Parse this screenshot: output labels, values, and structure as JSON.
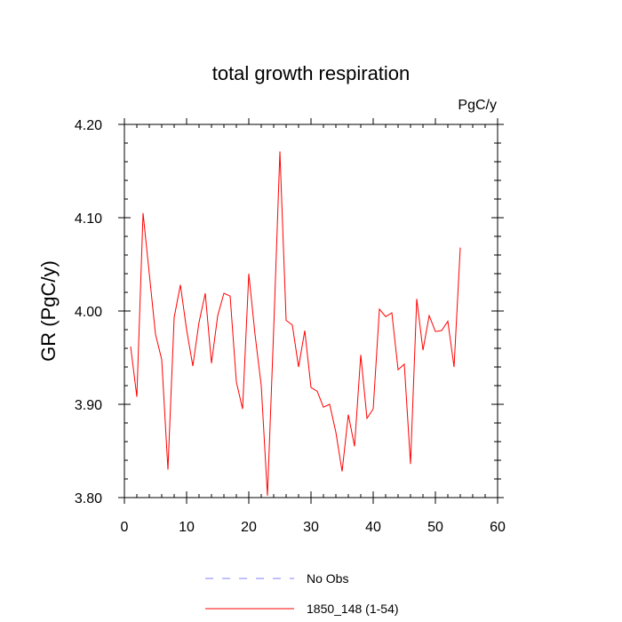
{
  "chart_data": {
    "type": "line",
    "title": "total growth respiration",
    "units_label": "PgC/y",
    "xlabel": "",
    "ylabel": "GR  (PgC/y)",
    "xlim": [
      0,
      60
    ],
    "ylim": [
      3.8,
      4.2
    ],
    "x_ticks": [
      0,
      10,
      20,
      30,
      40,
      50,
      60
    ],
    "x_tick_labels": [
      "0",
      "10",
      "20",
      "30",
      "40",
      "50",
      "60"
    ],
    "y_ticks": [
      3.8,
      3.9,
      4.0,
      4.1,
      4.2
    ],
    "y_tick_labels": [
      "3.80",
      "3.90",
      "4.00",
      "4.10",
      "4.20"
    ],
    "grid": false,
    "legend_position": "bottom-center",
    "series": [
      {
        "name": "No Obs",
        "color": "#8080ff",
        "style": "dashed",
        "x": [],
        "values": []
      },
      {
        "name": "1850_148 (1-54)",
        "color": "#ff0000",
        "style": "solid",
        "x": [
          1,
          2,
          3,
          4,
          5,
          6,
          7,
          8,
          9,
          10,
          11,
          12,
          13,
          14,
          15,
          16,
          17,
          18,
          19,
          20,
          21,
          22,
          23,
          24,
          25,
          26,
          27,
          28,
          29,
          30,
          31,
          32,
          33,
          34,
          35,
          36,
          37,
          38,
          39,
          40,
          41,
          42,
          43,
          44,
          45,
          46,
          47,
          48,
          49,
          50,
          51,
          52,
          53,
          54
        ],
        "values": [
          3.962,
          3.908,
          4.105,
          4.04,
          3.975,
          3.948,
          3.83,
          3.993,
          4.028,
          3.98,
          3.941,
          3.988,
          4.019,
          3.944,
          3.995,
          4.019,
          4.016,
          3.924,
          3.895,
          4.04,
          3.975,
          3.92,
          3.802,
          3.98,
          4.171,
          3.99,
          3.985,
          3.94,
          3.979,
          3.918,
          3.914,
          3.897,
          3.9,
          3.87,
          3.828,
          3.889,
          3.855,
          3.953,
          3.885,
          3.895,
          4.002,
          3.994,
          3.998,
          3.937,
          3.943,
          3.836,
          4.013,
          3.958,
          3.995,
          3.978,
          3.979,
          3.989,
          3.94,
          4.068
        ]
      }
    ]
  }
}
